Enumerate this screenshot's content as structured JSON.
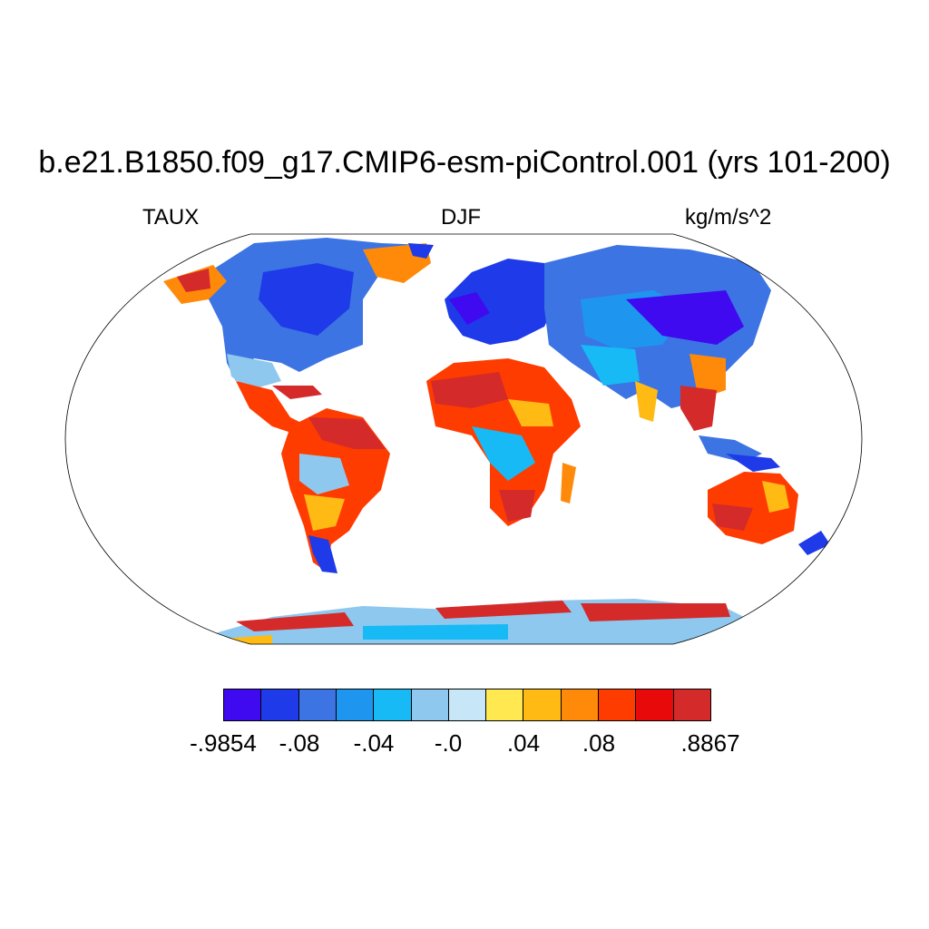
{
  "title": "b.e21.B1850.f09_g17.CMIP6-esm-piControl.001 (yrs 101-200)",
  "left_label": "TAUX",
  "center_label": "DJF",
  "right_label": "kg/m/s^2",
  "colorbar": {
    "colors": [
      "#3f0af0",
      "#1f3ae8",
      "#3c74e4",
      "#1e96f0",
      "#17baf5",
      "#8ec8ee",
      "#c7e6f8",
      "#ffe850",
      "#ffbb14",
      "#ff8a0a",
      "#ff3c00",
      "#e80a0a",
      "#d42a2a"
    ],
    "labels": [
      ".9854",
      "-.08",
      "-.04",
      "-.0",
      ".04",
      ".08",
      ".8867"
    ],
    "label_prefix_first": "-"
  }
}
